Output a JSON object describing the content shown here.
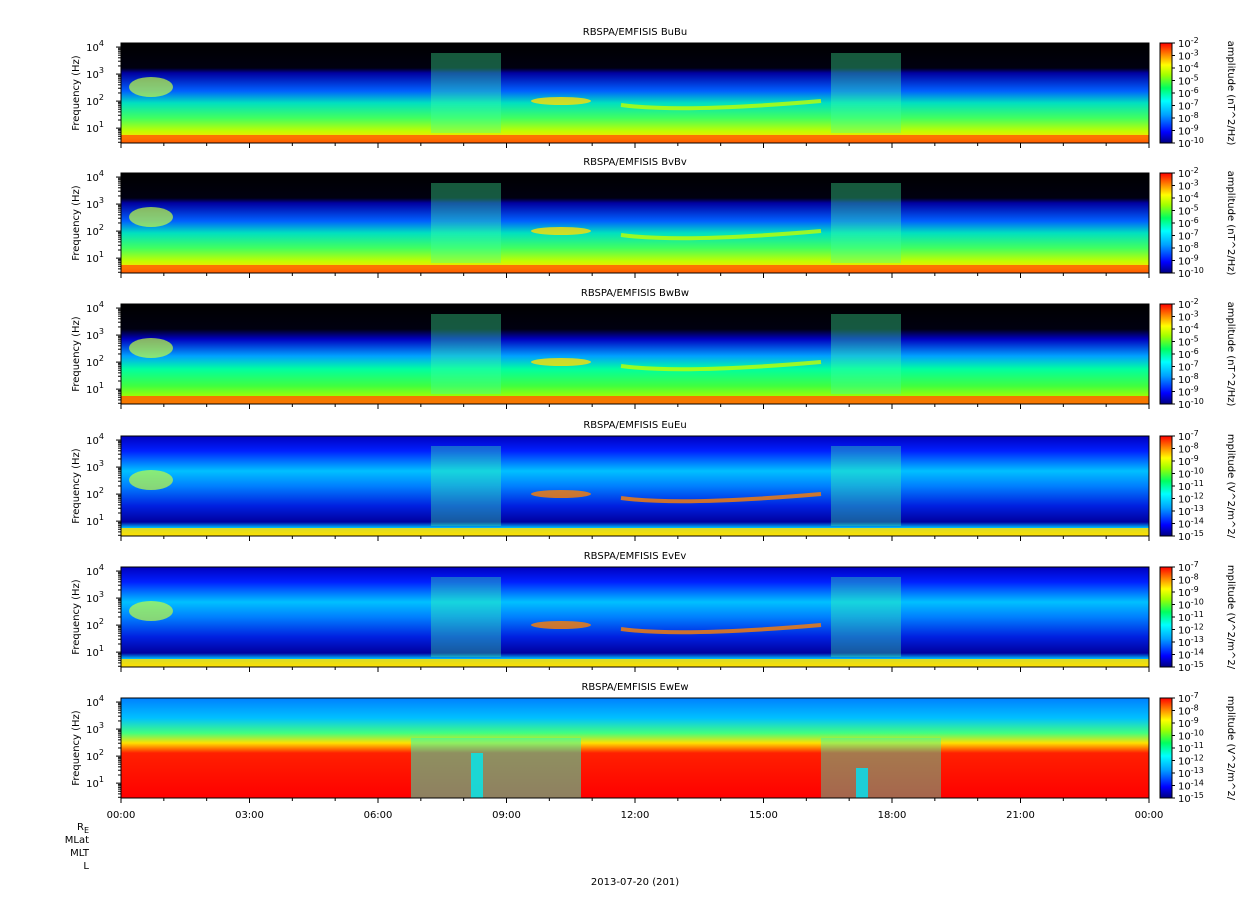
{
  "chart_data": {
    "type": "heatmap",
    "x_ticks": [
      "00:00",
      "03:00",
      "06:00",
      "09:00",
      "12:00",
      "15:00",
      "18:00",
      "21:00",
      "00:00"
    ],
    "ephemeris_labels": {
      "re": "R",
      "re_sub": "E",
      "mlat": "MLat",
      "mlt": "MLT",
      "l": "L"
    },
    "xlabel": "2013-07-20 (201)",
    "ylabel": "Frequency (Hz)",
    "y_scale": "log",
    "y_ticks": [
      {
        "base": "10",
        "exp": "1"
      },
      {
        "base": "10",
        "exp": "2"
      },
      {
        "base": "10",
        "exp": "3"
      },
      {
        "base": "10",
        "exp": "4"
      }
    ],
    "panels": [
      {
        "title": "RBSPA/EMFISIS  BuBu",
        "cb_label": "amplitude (nT^2/Hz)",
        "cb_min_exp": -10,
        "cb_max_exp": -2
      },
      {
        "title": "RBSPA/EMFISIS  BvBv",
        "cb_label": "amplitude (nT^2/Hz)",
        "cb_min_exp": -10,
        "cb_max_exp": -2
      },
      {
        "title": "RBSPA/EMFISIS  BwBw",
        "cb_label": "amplitude (nT^2/Hz)",
        "cb_min_exp": -10,
        "cb_max_exp": -2
      },
      {
        "title": "RBSPA/EMFISIS  EuEu",
        "cb_label": "mplitude (V^2/m^2/",
        "cb_min_exp": -15,
        "cb_max_exp": -7
      },
      {
        "title": "RBSPA/EMFISIS  EvEv",
        "cb_label": "mplitude (V^2/m^2/",
        "cb_min_exp": -15,
        "cb_max_exp": -7
      },
      {
        "title": "RBSPA/EMFISIS  EwEw",
        "cb_label": "mplitude (V^2/m^2/",
        "cb_min_exp": -15,
        "cb_max_exp": -7
      }
    ],
    "colormap": [
      "#000080",
      "#0000ff",
      "#0080ff",
      "#00ffff",
      "#00ff80",
      "#80ff00",
      "#ffff00",
      "#ff8000",
      "#ff0000"
    ]
  }
}
